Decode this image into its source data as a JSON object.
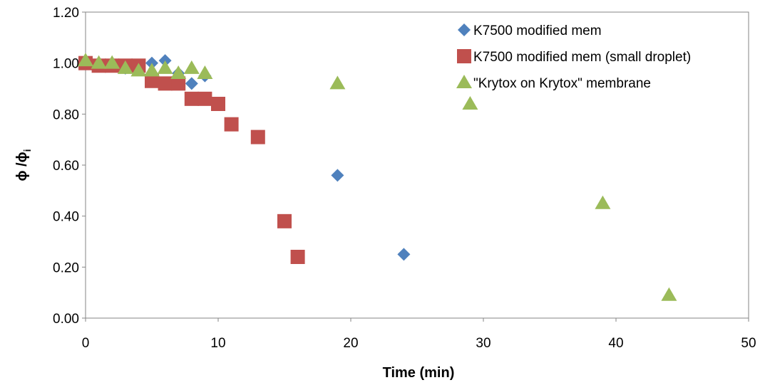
{
  "chart_data": {
    "type": "scatter",
    "title": "",
    "xlabel": "Time (min)",
    "ylabel": "ϕ /ϕ",
    "ylabel_subscript": "i",
    "xlim": [
      0,
      50
    ],
    "ylim": [
      0,
      1.2
    ],
    "x_ticks": [
      "0",
      "10",
      "20",
      "30",
      "40",
      "50"
    ],
    "y_ticks": [
      "0.00",
      "0.20",
      "0.40",
      "0.60",
      "0.80",
      "1.00",
      "1.20"
    ],
    "grid": false,
    "legend_position": "top-right",
    "series": [
      {
        "name": "K7500 modified mem",
        "marker": "diamond",
        "color": "#4F81BD",
        "points": [
          {
            "x": 0,
            "y": 1.0
          },
          {
            "x": 1,
            "y": 1.0
          },
          {
            "x": 2,
            "y": 0.99
          },
          {
            "x": 3,
            "y": 0.98
          },
          {
            "x": 4,
            "y": 0.98
          },
          {
            "x": 5,
            "y": 1.0
          },
          {
            "x": 6,
            "y": 1.01
          },
          {
            "x": 7,
            "y": 0.96
          },
          {
            "x": 8,
            "y": 0.92
          },
          {
            "x": 9,
            "y": 0.95
          },
          {
            "x": 19,
            "y": 0.56
          },
          {
            "x": 24,
            "y": 0.25
          }
        ]
      },
      {
        "name": "K7500 modified mem (small droplet)",
        "marker": "square",
        "color": "#C0504D",
        "points": [
          {
            "x": 0,
            "y": 1.0
          },
          {
            "x": 1,
            "y": 0.99
          },
          {
            "x": 2,
            "y": 0.99
          },
          {
            "x": 3,
            "y": 0.99
          },
          {
            "x": 4,
            "y": 0.99
          },
          {
            "x": 5,
            "y": 0.93
          },
          {
            "x": 6,
            "y": 0.92
          },
          {
            "x": 7,
            "y": 0.92
          },
          {
            "x": 8,
            "y": 0.86
          },
          {
            "x": 9,
            "y": 0.86
          },
          {
            "x": 10,
            "y": 0.84
          },
          {
            "x": 11,
            "y": 0.76
          },
          {
            "x": 13,
            "y": 0.71
          },
          {
            "x": 15,
            "y": 0.38
          },
          {
            "x": 16,
            "y": 0.24
          }
        ]
      },
      {
        "name": "\"Krytox on Krytox\" membrane",
        "marker": "triangle",
        "color": "#9BBB59",
        "points": [
          {
            "x": 0,
            "y": 1.01
          },
          {
            "x": 1,
            "y": 1.0
          },
          {
            "x": 2,
            "y": 1.0
          },
          {
            "x": 3,
            "y": 0.98
          },
          {
            "x": 4,
            "y": 0.97
          },
          {
            "x": 5,
            "y": 0.97
          },
          {
            "x": 6,
            "y": 0.98
          },
          {
            "x": 7,
            "y": 0.96
          },
          {
            "x": 8,
            "y": 0.98
          },
          {
            "x": 9,
            "y": 0.96
          },
          {
            "x": 19,
            "y": 0.92
          },
          {
            "x": 29,
            "y": 0.84
          },
          {
            "x": 39,
            "y": 0.45
          },
          {
            "x": 44,
            "y": 0.09
          }
        ]
      }
    ]
  }
}
